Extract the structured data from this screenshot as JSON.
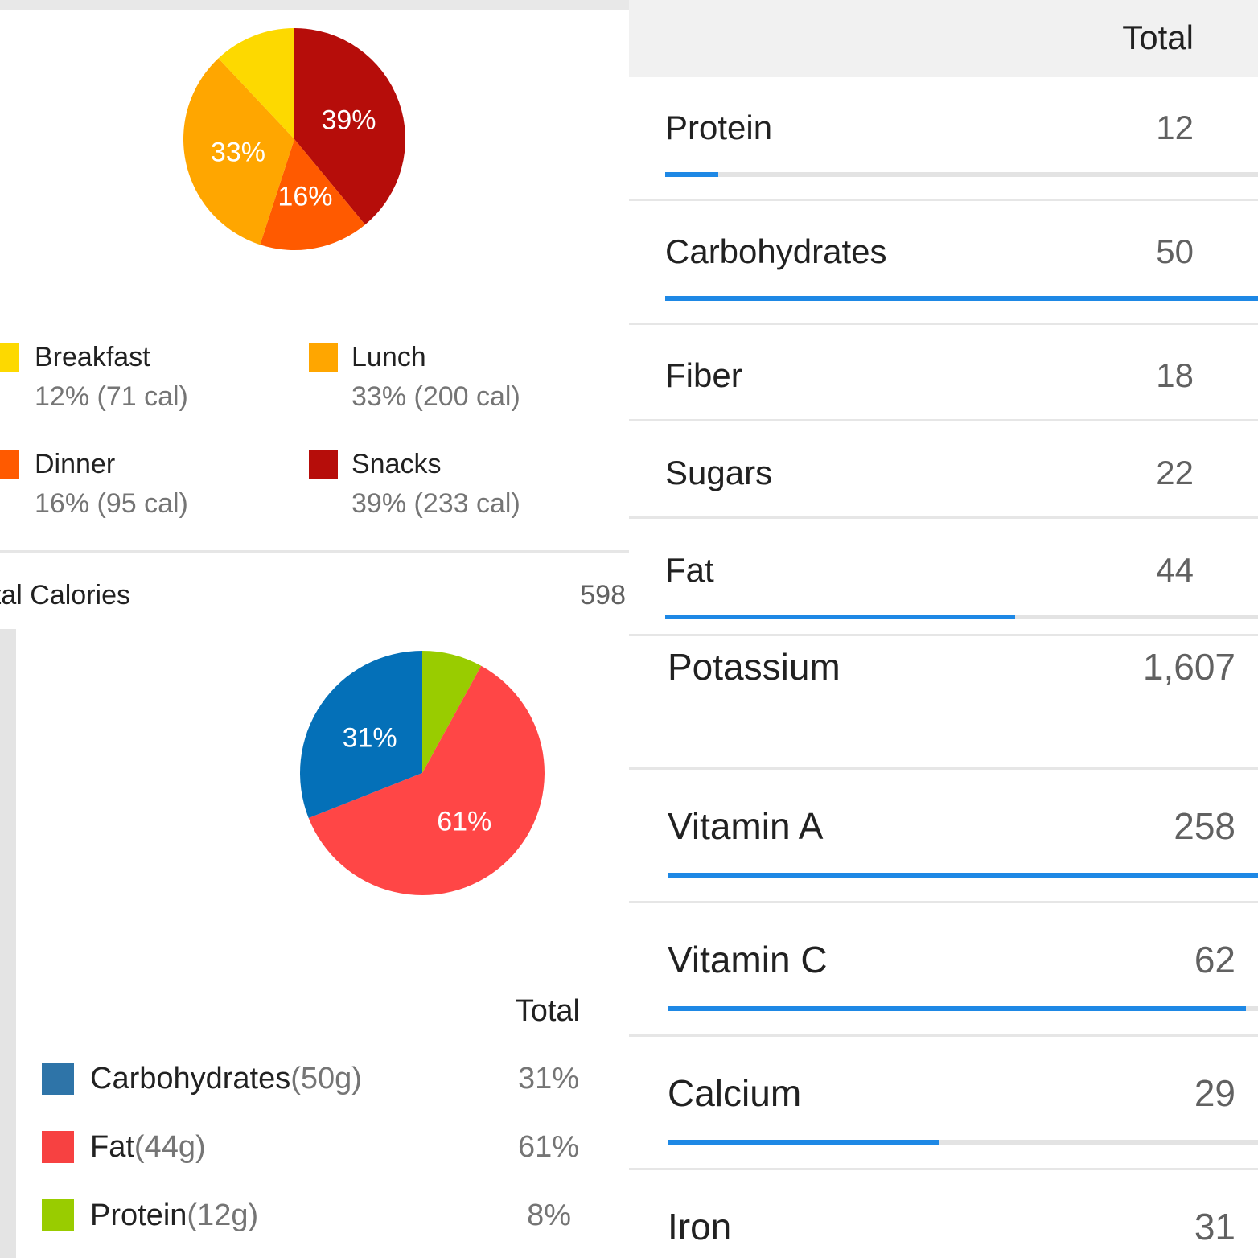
{
  "meals_panel": {
    "chart_data": {
      "type": "pie",
      "categories": [
        "Breakfast",
        "Lunch",
        "Dinner",
        "Snacks"
      ],
      "values": [
        12,
        33,
        16,
        39
      ],
      "slice_labels": [
        "",
        "33%",
        "16%",
        "39%"
      ],
      "colors": [
        "#FDD900",
        "#FFA600",
        "#FF5A00",
        "#B60D0A"
      ]
    },
    "legend": [
      {
        "name": "Breakfast",
        "detail": "12% (71 cal)",
        "color": "#FDD900"
      },
      {
        "name": "Lunch",
        "detail": "33% (200 cal)",
        "color": "#FFA600"
      },
      {
        "name": "Dinner",
        "detail": "16% (95 cal)",
        "color": "#FF5A00"
      },
      {
        "name": "Snacks",
        "detail": "39% (233 cal)",
        "color": "#B60D0A"
      }
    ],
    "total_calories_label": "Total Calories",
    "total_calories_value": "598"
  },
  "macros_panel": {
    "chart_data": {
      "type": "pie",
      "categories": [
        "Carbohydrates",
        "Fat",
        "Protein"
      ],
      "values": [
        31,
        61,
        8
      ],
      "slice_labels": [
        "31%",
        "61%",
        ""
      ],
      "colors": [
        "#0470B8",
        "#FF4646",
        "#99CC00"
      ]
    },
    "column_header": "Total",
    "items": [
      {
        "name": "Carbohydrates",
        "grams": "(50g)",
        "percent": "31%",
        "color": "#2E74A8"
      },
      {
        "name": "Fat",
        "grams": "(44g)",
        "percent": "61%",
        "color": "#F74141"
      },
      {
        "name": "Protein",
        "grams": "(12g)",
        "percent": "8%",
        "color": "#99CC00"
      }
    ]
  },
  "nutrients_top": {
    "column_header": "Total",
    "rows": [
      {
        "label": "Protein",
        "value": "12",
        "progress": 0.09
      },
      {
        "label": "Carbohydrates",
        "value": "50",
        "progress": 1.0
      },
      {
        "label": "Fiber",
        "value": "18"
      },
      {
        "label": "Sugars",
        "value": "22"
      },
      {
        "label": "Fat",
        "value": "44",
        "progress": 0.59
      }
    ]
  },
  "nutrients_bottom": {
    "rows": [
      {
        "label": "Potassium",
        "value": "1,607"
      },
      {
        "label": "Vitamin A",
        "value": "258",
        "progress": 1.0
      },
      {
        "label": "Vitamin C",
        "value": "62",
        "progress": 0.98
      },
      {
        "label": "Calcium",
        "value": "29",
        "progress": 0.46
      },
      {
        "label": "Iron",
        "value": "31"
      }
    ]
  },
  "colors": {
    "accent_bar": "#1E88E5",
    "track": "#E3E3E3"
  }
}
